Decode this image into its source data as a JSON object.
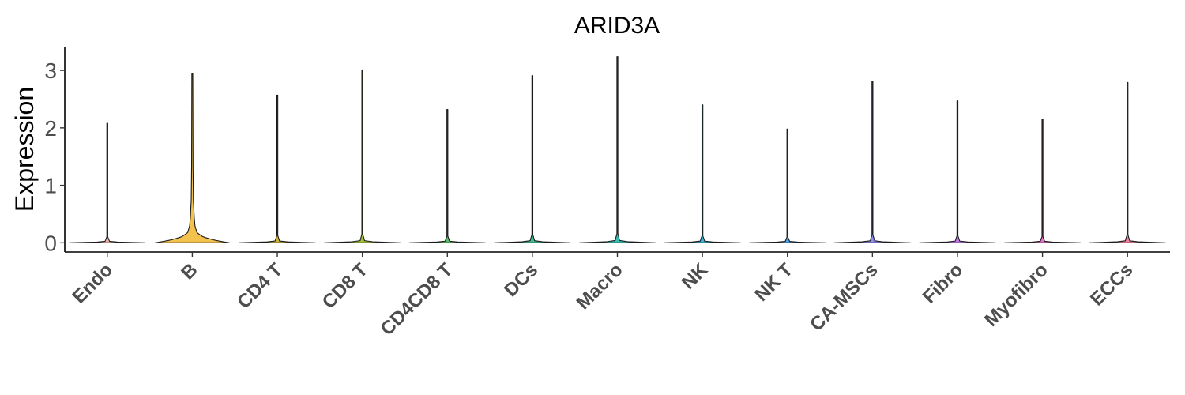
{
  "chart_data": {
    "type": "violin",
    "title": "ARID3A",
    "ylabel": "Expression",
    "xlabel": "",
    "ylim": [
      -0.16,
      3.4
    ],
    "yticks": [
      0,
      1,
      2,
      3
    ],
    "grid": false,
    "legend": "none",
    "categories": [
      "Endo",
      "B",
      "CD4 T",
      "CD8 T",
      "CD4CD8 T",
      "DCs",
      "Macro",
      "NK",
      "NK T",
      "CA-MSCs",
      "Fibro",
      "Myofibro",
      "ECCs"
    ],
    "max_values": [
      2.08,
      2.94,
      2.57,
      3.01,
      2.32,
      2.91,
      3.24,
      2.4,
      1.98,
      2.81,
      2.47,
      2.15,
      2.79
    ],
    "fill_colors": [
      "#F7B6A8",
      "#F2C14E",
      "#C9B33A",
      "#9FC13A",
      "#5DBB63",
      "#3DBE8E",
      "#36BFB4",
      "#38B6D8",
      "#4FA3E8",
      "#8D8CF0",
      "#C07AE8",
      "#E86FCB",
      "#F07FA0"
    ],
    "density_profiles": {
      "default": [
        [
          0,
          0.98
        ],
        [
          0.002,
          0.5
        ],
        [
          0.01,
          0.06
        ],
        [
          0.05,
          0.012
        ],
        [
          1,
          0.012
        ]
      ],
      "B": [
        [
          0,
          0.97
        ],
        [
          0.01,
          0.7
        ],
        [
          0.02,
          0.5
        ],
        [
          0.035,
          0.28
        ],
        [
          0.06,
          0.12
        ],
        [
          0.1,
          0.07
        ],
        [
          0.15,
          0.05
        ],
        [
          0.2,
          0.04
        ],
        [
          0.25,
          0.028
        ],
        [
          0.45,
          0.018
        ],
        [
          1,
          0.012
        ]
      ]
    },
    "category_density": [
      "default",
      "B",
      "default",
      "default",
      "default",
      "default",
      "default",
      "default",
      "default",
      "default",
      "default",
      "default",
      "default"
    ]
  }
}
